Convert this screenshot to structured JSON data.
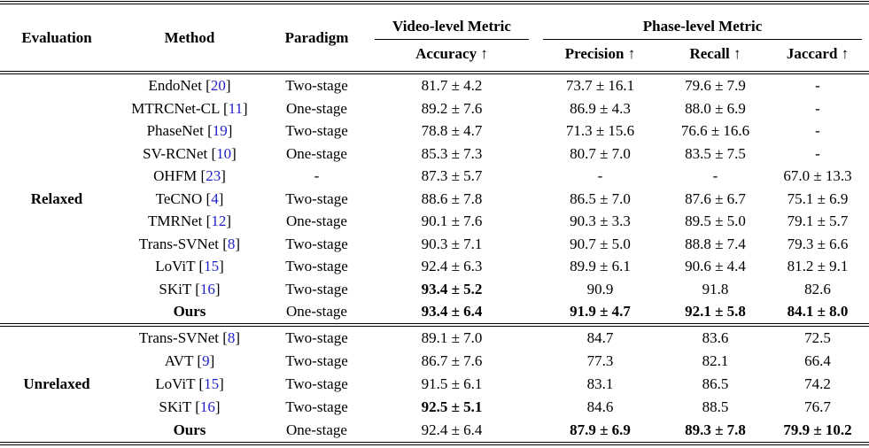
{
  "colors": {
    "citation_blue": "#2222CC",
    "text": "#000000",
    "background": "#ffffff"
  },
  "header": {
    "evaluation": "Evaluation",
    "method": "Method",
    "paradigm": "Paradigm",
    "video_group": "Video-level Metric",
    "phase_group": "Phase-level Metric",
    "accuracy": "Accuracy ↑",
    "precision": "Precision ↑",
    "recall": "Recall ↑",
    "jaccard": "Jaccard ↑"
  },
  "sections": [
    {
      "label": "Relaxed",
      "rows": [
        {
          "method": {
            "name": "EndoNet",
            "cite": "20",
            "bold": false
          },
          "paradigm": "Two-stage",
          "metrics": [
            {
              "text": "81.7 ± 4.2",
              "bold": false
            },
            {
              "text": "73.7 ± 16.1",
              "bold": false
            },
            {
              "text": "79.6 ± 7.9",
              "bold": false
            },
            {
              "text": "-",
              "bold": false
            }
          ]
        },
        {
          "method": {
            "name": "MTRCNet-CL",
            "cite": "11",
            "bold": false
          },
          "paradigm": "One-stage",
          "metrics": [
            {
              "text": "89.2 ± 7.6",
              "bold": false
            },
            {
              "text": "86.9 ± 4.3",
              "bold": false
            },
            {
              "text": "88.0 ± 6.9",
              "bold": false
            },
            {
              "text": "-",
              "bold": false
            }
          ]
        },
        {
          "method": {
            "name": "PhaseNet",
            "cite": "19",
            "bold": false
          },
          "paradigm": "Two-stage",
          "metrics": [
            {
              "text": "78.8 ± 4.7",
              "bold": false
            },
            {
              "text": "71.3 ± 15.6",
              "bold": false
            },
            {
              "text": "76.6 ± 16.6",
              "bold": false
            },
            {
              "text": "-",
              "bold": false
            }
          ]
        },
        {
          "method": {
            "name": "SV-RCNet",
            "cite": "10",
            "bold": false
          },
          "paradigm": "One-stage",
          "metrics": [
            {
              "text": "85.3 ± 7.3",
              "bold": false
            },
            {
              "text": "80.7 ± 7.0",
              "bold": false
            },
            {
              "text": "83.5 ± 7.5",
              "bold": false
            },
            {
              "text": "-",
              "bold": false
            }
          ]
        },
        {
          "method": {
            "name": "OHFM",
            "cite": "23",
            "bold": false
          },
          "paradigm": "-",
          "metrics": [
            {
              "text": "87.3 ± 5.7",
              "bold": false
            },
            {
              "text": "-",
              "bold": false
            },
            {
              "text": "-",
              "bold": false
            },
            {
              "text": "67.0 ± 13.3",
              "bold": false
            }
          ]
        },
        {
          "method": {
            "name": "TeCNO",
            "cite": "4",
            "bold": false
          },
          "paradigm": "Two-stage",
          "metrics": [
            {
              "text": "88.6 ± 7.8",
              "bold": false
            },
            {
              "text": "86.5 ± 7.0",
              "bold": false
            },
            {
              "text": "87.6 ± 6.7",
              "bold": false
            },
            {
              "text": "75.1 ± 6.9",
              "bold": false
            }
          ]
        },
        {
          "method": {
            "name": "TMRNet",
            "cite": "12",
            "bold": false
          },
          "paradigm": "One-stage",
          "metrics": [
            {
              "text": "90.1 ± 7.6",
              "bold": false
            },
            {
              "text": "90.3 ± 3.3",
              "bold": false
            },
            {
              "text": "89.5 ± 5.0",
              "bold": false
            },
            {
              "text": "79.1 ± 5.7",
              "bold": false
            }
          ]
        },
        {
          "method": {
            "name": "Trans-SVNet",
            "cite": "8",
            "bold": false
          },
          "paradigm": "Two-stage",
          "metrics": [
            {
              "text": "90.3 ± 7.1",
              "bold": false
            },
            {
              "text": "90.7 ± 5.0",
              "bold": false
            },
            {
              "text": "88.8 ± 7.4",
              "bold": false
            },
            {
              "text": "79.3 ± 6.6",
              "bold": false
            }
          ]
        },
        {
          "method": {
            "name": "LoViT",
            "cite": "15",
            "bold": false
          },
          "paradigm": "Two-stage",
          "metrics": [
            {
              "text": "92.4 ± 6.3",
              "bold": false
            },
            {
              "text": "89.9 ± 6.1",
              "bold": false
            },
            {
              "text": "90.6 ± 4.4",
              "bold": false
            },
            {
              "text": "81.2 ± 9.1",
              "bold": false
            }
          ]
        },
        {
          "method": {
            "name": "SKiT",
            "cite": "16",
            "bold": false
          },
          "paradigm": "Two-stage",
          "metrics": [
            {
              "text": "93.4 ± 5.2",
              "bold": true
            },
            {
              "text": "90.9",
              "bold": false
            },
            {
              "text": "91.8",
              "bold": false
            },
            {
              "text": "82.6",
              "bold": false
            }
          ]
        },
        {
          "method": {
            "name": "Ours",
            "cite": null,
            "bold": true
          },
          "paradigm": "One-stage",
          "metrics": [
            {
              "text": "93.4 ± 6.4",
              "bold": true
            },
            {
              "text": "91.9 ± 4.7",
              "bold": true
            },
            {
              "text": "92.1 ± 5.8",
              "bold": true
            },
            {
              "text": "84.1 ± 8.0",
              "bold": true
            }
          ]
        }
      ]
    },
    {
      "label": "Unrelaxed",
      "rows": [
        {
          "method": {
            "name": "Trans-SVNet",
            "cite": "8",
            "bold": false
          },
          "paradigm": "Two-stage",
          "metrics": [
            {
              "text": "89.1 ± 7.0",
              "bold": false
            },
            {
              "text": "84.7",
              "bold": false
            },
            {
              "text": "83.6",
              "bold": false
            },
            {
              "text": "72.5",
              "bold": false
            }
          ]
        },
        {
          "method": {
            "name": "AVT",
            "cite": "9",
            "bold": false
          },
          "paradigm": "Two-stage",
          "metrics": [
            {
              "text": "86.7 ± 7.6",
              "bold": false
            },
            {
              "text": "77.3",
              "bold": false
            },
            {
              "text": "82.1",
              "bold": false
            },
            {
              "text": "66.4",
              "bold": false
            }
          ]
        },
        {
          "method": {
            "name": "LoViT",
            "cite": "15",
            "bold": false
          },
          "paradigm": "Two-stage",
          "metrics": [
            {
              "text": "91.5 ± 6.1",
              "bold": false
            },
            {
              "text": "83.1",
              "bold": false
            },
            {
              "text": "86.5",
              "bold": false
            },
            {
              "text": "74.2",
              "bold": false
            }
          ]
        },
        {
          "method": {
            "name": "SKiT",
            "cite": "16",
            "bold": false
          },
          "paradigm": "Two-stage",
          "metrics": [
            {
              "text": "92.5 ± 5.1",
              "bold": true
            },
            {
              "text": "84.6",
              "bold": false
            },
            {
              "text": "88.5",
              "bold": false
            },
            {
              "text": "76.7",
              "bold": false
            }
          ]
        },
        {
          "method": {
            "name": "Ours",
            "cite": null,
            "bold": true
          },
          "paradigm": "One-stage",
          "metrics": [
            {
              "text": "92.4 ± 6.4",
              "bold": false
            },
            {
              "text": "87.9 ± 6.9",
              "bold": true
            },
            {
              "text": "89.3 ± 7.8",
              "bold": true
            },
            {
              "text": "79.9 ± 10.2",
              "bold": true
            }
          ]
        }
      ]
    }
  ]
}
